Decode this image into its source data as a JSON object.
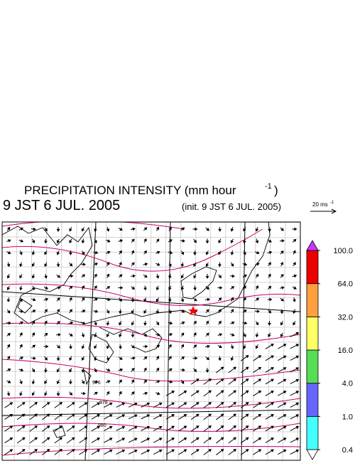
{
  "header": {
    "title": "PRECIPITATION INTENSITY (mm hour",
    "title_sup": "-1",
    "title_end": ")",
    "valid_time": "9 JST 6 JUL. 2005",
    "init_time": "(init. 9 JST 6 JUL. 2005)"
  },
  "wind_scale": {
    "label": "20 ms",
    "sup": "-1"
  },
  "colorbar": {
    "ticks": [
      {
        "value": 0.4,
        "label": "0.4"
      },
      {
        "value": 1,
        "label": "1.0"
      },
      {
        "value": 4,
        "label": "4.0"
      },
      {
        "value": 16,
        "label": "16.0"
      },
      {
        "value": 32,
        "label": "32.0"
      },
      {
        "value": 64,
        "label": "64.0"
      },
      {
        "value": 100,
        "label": "100.0"
      }
    ],
    "colors": [
      "#44ffff",
      "#6666ff",
      "#55dd55",
      "#ffff66",
      "#ffa040",
      "#ee0000"
    ],
    "over_color": "#cc33ff",
    "under_color": "#ffffff"
  },
  "contour_labels": [
    "976",
    "978",
    "980"
  ]
}
